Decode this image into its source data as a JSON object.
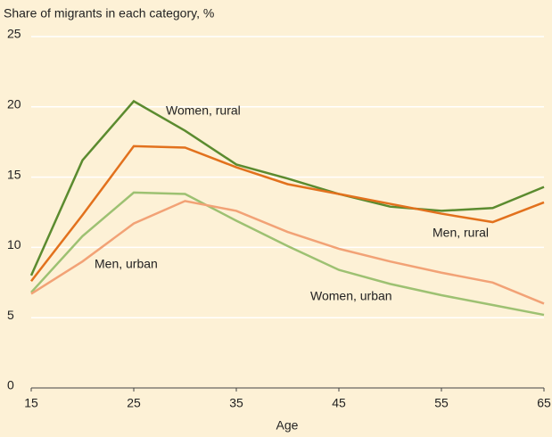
{
  "chart_data": {
    "type": "line",
    "title": "Share of migrants in each category, %",
    "x_label": "Age",
    "x": [
      15,
      20,
      25,
      30,
      35,
      40,
      45,
      50,
      55,
      60,
      65
    ],
    "series": [
      {
        "name": "Women, rural",
        "color": "#5b8b2f",
        "values": [
          8.0,
          16.2,
          20.4,
          18.3,
          15.9,
          14.9,
          13.8,
          12.9,
          12.6,
          12.8,
          14.3
        ]
      },
      {
        "name": "Men, rural",
        "color": "#e2711d",
        "values": [
          7.6,
          12.3,
          17.2,
          17.1,
          15.7,
          14.5,
          13.8,
          13.1,
          12.4,
          11.8,
          13.2
        ]
      },
      {
        "name": "Women, urban",
        "color": "#9dc172",
        "values": [
          6.8,
          10.8,
          13.9,
          13.8,
          11.9,
          10.1,
          8.4,
          7.4,
          6.6,
          5.9,
          5.2
        ]
      },
      {
        "name": "Men, urban",
        "color": "#f2a276",
        "values": [
          6.7,
          9.0,
          11.7,
          13.3,
          12.6,
          11.1,
          9.9,
          9.0,
          8.2,
          7.5,
          6.0
        ]
      }
    ],
    "xlim": [
      15,
      65
    ],
    "xticks": [
      15,
      25,
      35,
      45,
      55,
      65
    ],
    "ylim": [
      0,
      25
    ],
    "yticks": [
      0,
      5,
      10,
      15,
      20,
      25
    ],
    "grid": true
  }
}
